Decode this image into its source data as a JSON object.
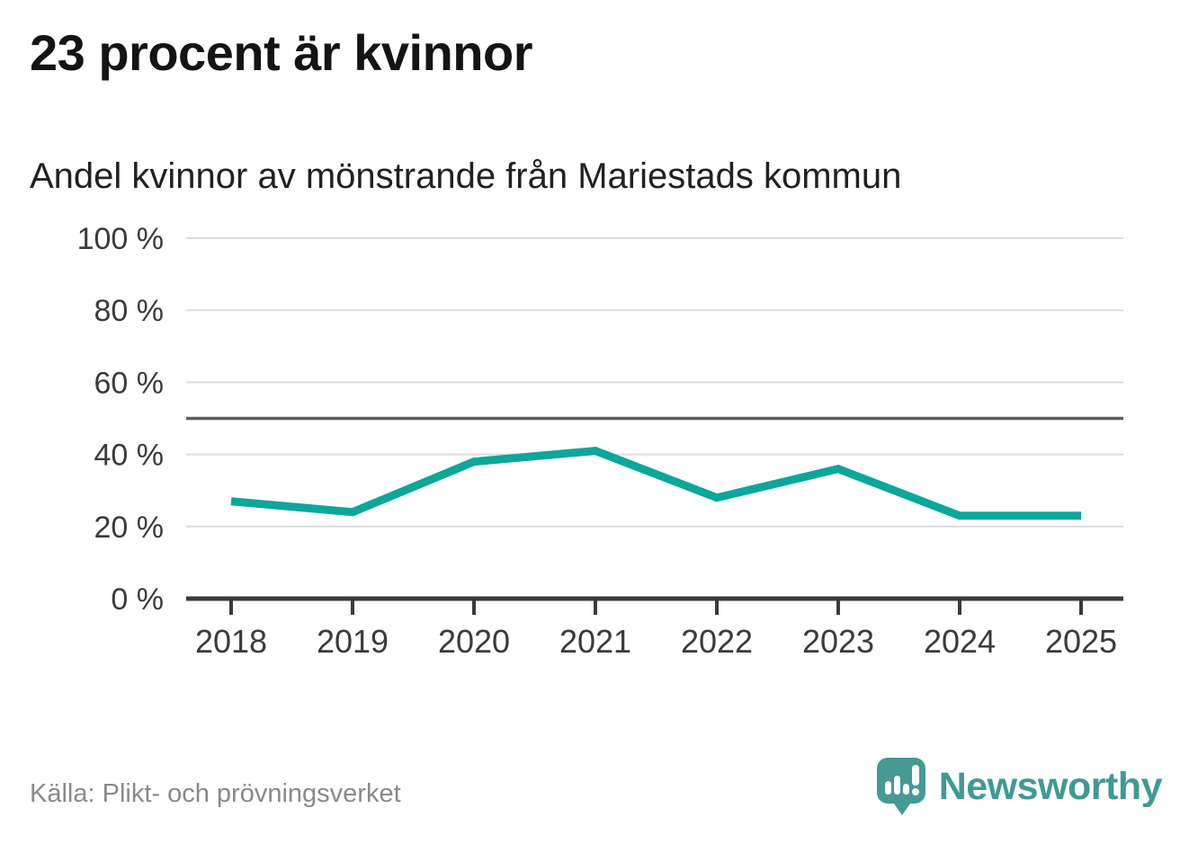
{
  "header": {
    "title": "23 procent är kvinnor",
    "subtitle": "Andel kvinnor av mönstrande från Mariestads kommun"
  },
  "footer": {
    "source": "Källa: Plikt- och prövningsverket",
    "brand": "Newsworthy"
  },
  "colors": {
    "line": "#0ba79a",
    "grid": "#dcdcdc",
    "reference": "#5b5b63",
    "axis": "#3b3b3b",
    "tick_label": "#3b3b3b",
    "title": "#141414",
    "subtitle": "#212121",
    "source": "#8a8a8a",
    "brand": "#3f9a93"
  },
  "chart_data": {
    "type": "line",
    "title": "Andel kvinnor av mönstrande från Mariestads kommun",
    "categories": [
      "2018",
      "2019",
      "2020",
      "2021",
      "2022",
      "2023",
      "2024",
      "2025"
    ],
    "values": [
      27,
      24,
      38,
      41,
      28,
      36,
      23,
      23
    ],
    "unit": "%",
    "ylim": [
      0,
      100
    ],
    "yticks": [
      0,
      20,
      40,
      60,
      80,
      100
    ],
    "ytick_labels": [
      "0 %",
      "20 %",
      "40 %",
      "60 %",
      "80 %",
      "100 %"
    ],
    "reference_line": 50,
    "grid": true,
    "legend": "none",
    "xlabel": "",
    "ylabel": ""
  }
}
